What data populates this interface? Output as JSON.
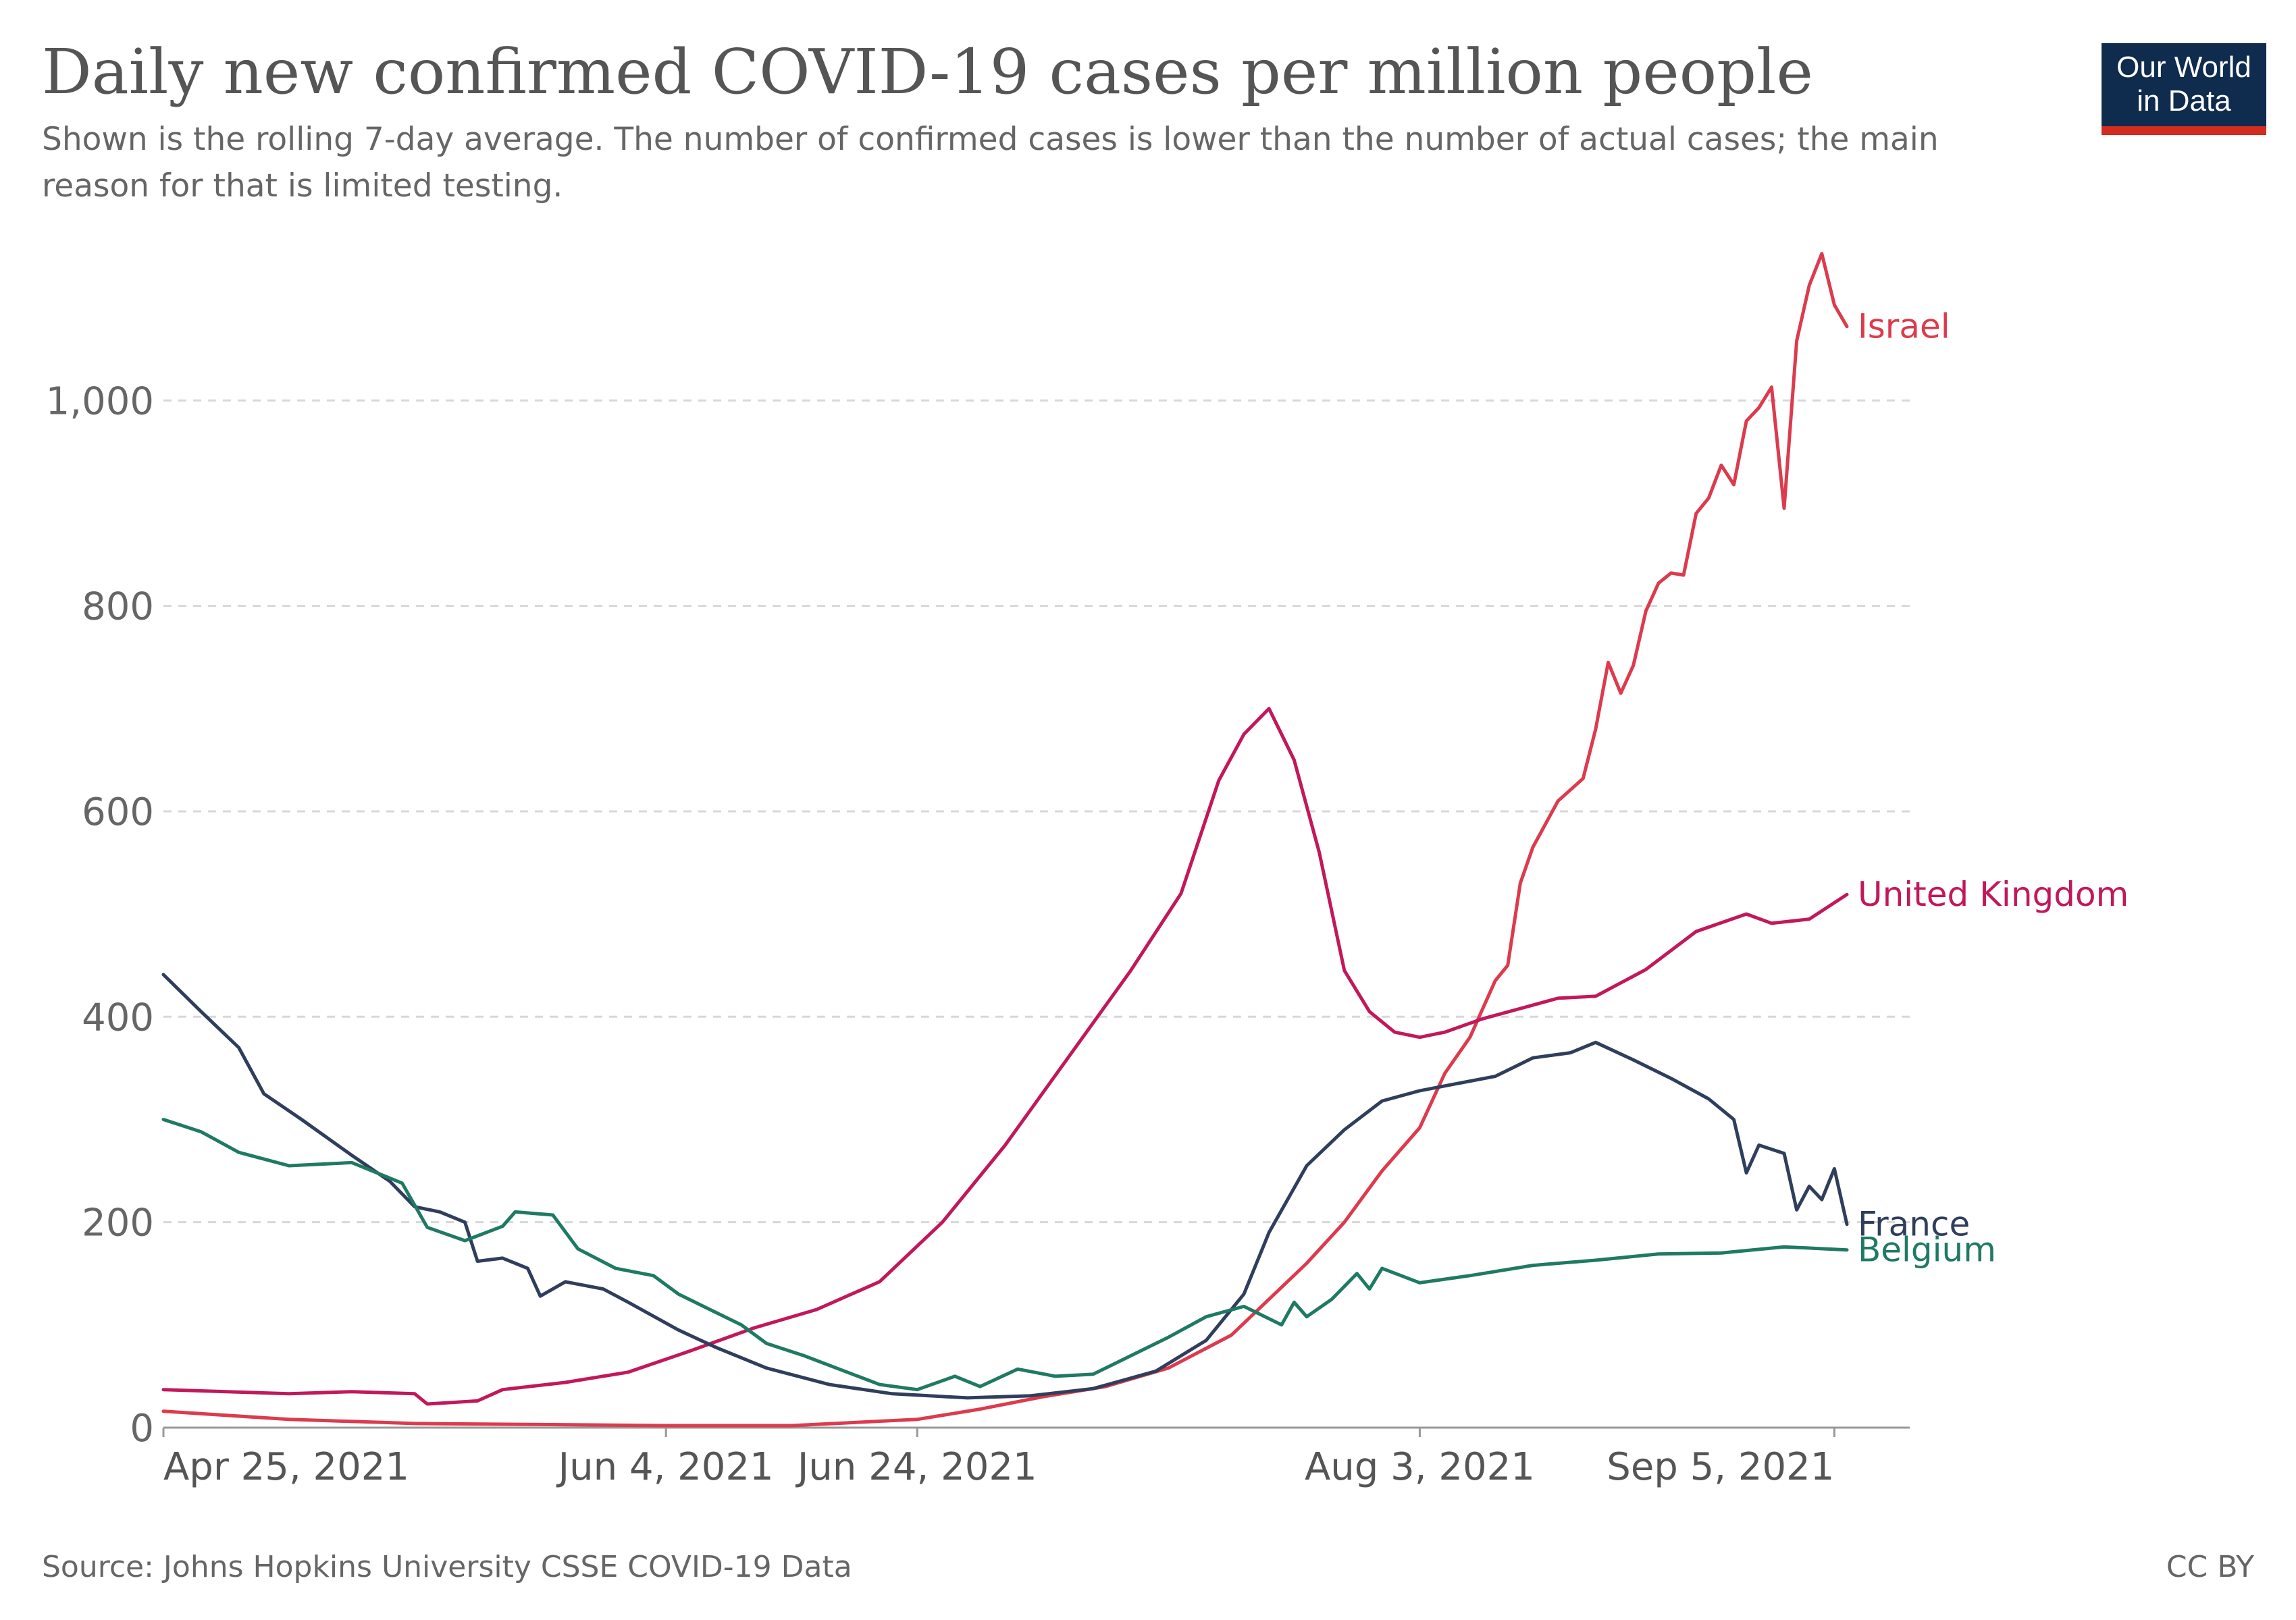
{
  "header": {
    "title": "Daily new confirmed COVID-19 cases per million people",
    "subtitle": "Shown is the rolling 7-day average. The number of confirmed cases is lower than the number of actual cases; the main reason for that is limited testing."
  },
  "logo": {
    "line1": "Our World",
    "line2": "in Data"
  },
  "footer": {
    "source": "Source: Johns Hopkins University CSSE COVID-19 Data",
    "license": "CC BY"
  },
  "chart_data": {
    "type": "line",
    "title": "Daily new confirmed COVID-19 cases per million people",
    "subtitle": "Shown is the rolling 7-day average. The number of confirmed cases is lower than the number of actual cases; the main reason for that is limited testing.",
    "xlabel": "",
    "ylabel": "",
    "x_start": "2021-04-25",
    "x_end": "2021-09-11",
    "xlim": [
      "2021-04-25",
      "2021-09-11"
    ],
    "ylim": [
      0,
      1150
    ],
    "yticks": [
      0,
      200,
      400,
      600,
      800,
      1000
    ],
    "ytick_labels": [
      "0",
      "200",
      "400",
      "600",
      "800",
      "1,000"
    ],
    "xticks": [
      "2021-04-25",
      "2021-06-04",
      "2021-06-24",
      "2021-08-03",
      "2021-09-05"
    ],
    "xtick_labels": [
      "Apr 25, 2021",
      "Jun 4, 2021",
      "Jun 24, 2021",
      "Aug 3, 2021",
      "Sep 5, 2021"
    ],
    "grid": "horizontal dashed",
    "legend": "labels at line ends (right)",
    "series": [
      {
        "name": "Israel",
        "color": "#dc3b4d",
        "points": [
          [
            "2021-04-25",
            16
          ],
          [
            "2021-05-05",
            8
          ],
          [
            "2021-05-15",
            4
          ],
          [
            "2021-05-25",
            3
          ],
          [
            "2021-06-04",
            2
          ],
          [
            "2021-06-14",
            2
          ],
          [
            "2021-06-24",
            8
          ],
          [
            "2021-06-29",
            18
          ],
          [
            "2021-07-04",
            30
          ],
          [
            "2021-07-09",
            40
          ],
          [
            "2021-07-14",
            58
          ],
          [
            "2021-07-19",
            90
          ],
          [
            "2021-07-22",
            125
          ],
          [
            "2021-07-25",
            160
          ],
          [
            "2021-07-28",
            200
          ],
          [
            "2021-07-31",
            250
          ],
          [
            "2021-08-03",
            292
          ],
          [
            "2021-08-05",
            345
          ],
          [
            "2021-08-07",
            380
          ],
          [
            "2021-08-09",
            435
          ],
          [
            "2021-08-10",
            450
          ],
          [
            "2021-08-11",
            530
          ],
          [
            "2021-08-12",
            565
          ],
          [
            "2021-08-14",
            610
          ],
          [
            "2021-08-16",
            632
          ],
          [
            "2021-08-17",
            680
          ],
          [
            "2021-08-18",
            745
          ],
          [
            "2021-08-19",
            715
          ],
          [
            "2021-08-20",
            742
          ],
          [
            "2021-08-21",
            795
          ],
          [
            "2021-08-22",
            822
          ],
          [
            "2021-08-23",
            832
          ],
          [
            "2021-08-24",
            830
          ],
          [
            "2021-08-25",
            890
          ],
          [
            "2021-08-26",
            905
          ],
          [
            "2021-08-27",
            937
          ],
          [
            "2021-08-28",
            918
          ],
          [
            "2021-08-29",
            980
          ],
          [
            "2021-08-30",
            993
          ],
          [
            "2021-08-31",
            1013
          ],
          [
            "2021-09-01",
            895
          ],
          [
            "2021-09-02",
            1058
          ],
          [
            "2021-09-03",
            1112
          ],
          [
            "2021-09-04",
            1143
          ],
          [
            "2021-09-05",
            1093
          ],
          [
            "2021-09-06",
            1072
          ]
        ]
      },
      {
        "name": "United Kingdom",
        "color": "#c2185b",
        "points": [
          [
            "2021-04-25",
            37
          ],
          [
            "2021-05-05",
            33
          ],
          [
            "2021-05-10",
            35
          ],
          [
            "2021-05-15",
            33
          ],
          [
            "2021-05-16",
            23
          ],
          [
            "2021-05-20",
            26
          ],
          [
            "2021-05-22",
            37
          ],
          [
            "2021-05-27",
            44
          ],
          [
            "2021-06-01",
            54
          ],
          [
            "2021-06-06",
            75
          ],
          [
            "2021-06-11",
            97
          ],
          [
            "2021-06-16",
            115
          ],
          [
            "2021-06-21",
            142
          ],
          [
            "2021-06-26",
            200
          ],
          [
            "2021-07-01",
            275
          ],
          [
            "2021-07-06",
            360
          ],
          [
            "2021-07-11",
            445
          ],
          [
            "2021-07-15",
            520
          ],
          [
            "2021-07-18",
            630
          ],
          [
            "2021-07-20",
            675
          ],
          [
            "2021-07-22",
            700
          ],
          [
            "2021-07-24",
            650
          ],
          [
            "2021-07-26",
            560
          ],
          [
            "2021-07-28",
            445
          ],
          [
            "2021-07-30",
            405
          ],
          [
            "2021-08-01",
            385
          ],
          [
            "2021-08-03",
            380
          ],
          [
            "2021-08-05",
            385
          ],
          [
            "2021-08-08",
            398
          ],
          [
            "2021-08-11",
            408
          ],
          [
            "2021-08-14",
            418
          ],
          [
            "2021-08-17",
            420
          ],
          [
            "2021-08-21",
            446
          ],
          [
            "2021-08-25",
            483
          ],
          [
            "2021-08-29",
            500
          ],
          [
            "2021-08-31",
            491
          ],
          [
            "2021-09-03",
            495
          ],
          [
            "2021-09-06",
            519
          ]
        ]
      },
      {
        "name": "France",
        "color": "#2f3e5c",
        "points": [
          [
            "2021-04-25",
            441
          ],
          [
            "2021-04-28",
            405
          ],
          [
            "2021-05-01",
            370
          ],
          [
            "2021-05-03",
            325
          ],
          [
            "2021-05-06",
            300
          ],
          [
            "2021-05-10",
            265
          ],
          [
            "2021-05-13",
            240
          ],
          [
            "2021-05-15",
            215
          ],
          [
            "2021-05-17",
            210
          ],
          [
            "2021-05-19",
            200
          ],
          [
            "2021-05-20",
            162
          ],
          [
            "2021-05-22",
            165
          ],
          [
            "2021-05-24",
            155
          ],
          [
            "2021-05-25",
            128
          ],
          [
            "2021-05-27",
            142
          ],
          [
            "2021-05-30",
            135
          ],
          [
            "2021-06-01",
            122
          ],
          [
            "2021-06-05",
            95
          ],
          [
            "2021-06-08",
            78
          ],
          [
            "2021-06-12",
            58
          ],
          [
            "2021-06-17",
            42
          ],
          [
            "2021-06-22",
            33
          ],
          [
            "2021-06-28",
            29
          ],
          [
            "2021-07-03",
            31
          ],
          [
            "2021-07-08",
            38
          ],
          [
            "2021-07-13",
            55
          ],
          [
            "2021-07-17",
            85
          ],
          [
            "2021-07-20",
            130
          ],
          [
            "2021-07-22",
            190
          ],
          [
            "2021-07-25",
            255
          ],
          [
            "2021-07-28",
            290
          ],
          [
            "2021-07-31",
            318
          ],
          [
            "2021-08-03",
            328
          ],
          [
            "2021-08-06",
            335
          ],
          [
            "2021-08-09",
            342
          ],
          [
            "2021-08-12",
            360
          ],
          [
            "2021-08-15",
            365
          ],
          [
            "2021-08-17",
            375
          ],
          [
            "2021-08-20",
            358
          ],
          [
            "2021-08-23",
            340
          ],
          [
            "2021-08-26",
            320
          ],
          [
            "2021-08-28",
            300
          ],
          [
            "2021-08-29",
            248
          ],
          [
            "2021-08-30",
            275
          ],
          [
            "2021-09-01",
            267
          ],
          [
            "2021-09-02",
            212
          ],
          [
            "2021-09-03",
            235
          ],
          [
            "2021-09-04",
            222
          ],
          [
            "2021-09-05",
            252
          ],
          [
            "2021-09-06",
            198
          ]
        ]
      },
      {
        "name": "Belgium",
        "color": "#1f7a63",
        "points": [
          [
            "2021-04-25",
            300
          ],
          [
            "2021-04-28",
            288
          ],
          [
            "2021-05-01",
            268
          ],
          [
            "2021-05-05",
            255
          ],
          [
            "2021-05-10",
            258
          ],
          [
            "2021-05-14",
            238
          ],
          [
            "2021-05-16",
            195
          ],
          [
            "2021-05-19",
            182
          ],
          [
            "2021-05-22",
            196
          ],
          [
            "2021-05-23",
            210
          ],
          [
            "2021-05-26",
            207
          ],
          [
            "2021-05-28",
            174
          ],
          [
            "2021-05-31",
            155
          ],
          [
            "2021-06-03",
            148
          ],
          [
            "2021-06-05",
            130
          ],
          [
            "2021-06-08",
            112
          ],
          [
            "2021-06-10",
            100
          ],
          [
            "2021-06-12",
            82
          ],
          [
            "2021-06-15",
            70
          ],
          [
            "2021-06-18",
            56
          ],
          [
            "2021-06-21",
            42
          ],
          [
            "2021-06-24",
            37
          ],
          [
            "2021-06-27",
            50
          ],
          [
            "2021-06-29",
            40
          ],
          [
            "2021-07-02",
            57
          ],
          [
            "2021-07-05",
            50
          ],
          [
            "2021-07-08",
            52
          ],
          [
            "2021-07-11",
            70
          ],
          [
            "2021-07-14",
            88
          ],
          [
            "2021-07-17",
            108
          ],
          [
            "2021-07-20",
            118
          ],
          [
            "2021-07-23",
            100
          ],
          [
            "2021-07-24",
            122
          ],
          [
            "2021-07-25",
            108
          ],
          [
            "2021-07-27",
            125
          ],
          [
            "2021-07-29",
            150
          ],
          [
            "2021-07-30",
            135
          ],
          [
            "2021-07-31",
            155
          ],
          [
            "2021-08-03",
            141
          ],
          [
            "2021-08-07",
            148
          ],
          [
            "2021-08-12",
            158
          ],
          [
            "2021-08-17",
            163
          ],
          [
            "2021-08-22",
            169
          ],
          [
            "2021-08-27",
            170
          ],
          [
            "2021-09-01",
            176
          ],
          [
            "2021-09-06",
            173
          ]
        ]
      }
    ]
  }
}
